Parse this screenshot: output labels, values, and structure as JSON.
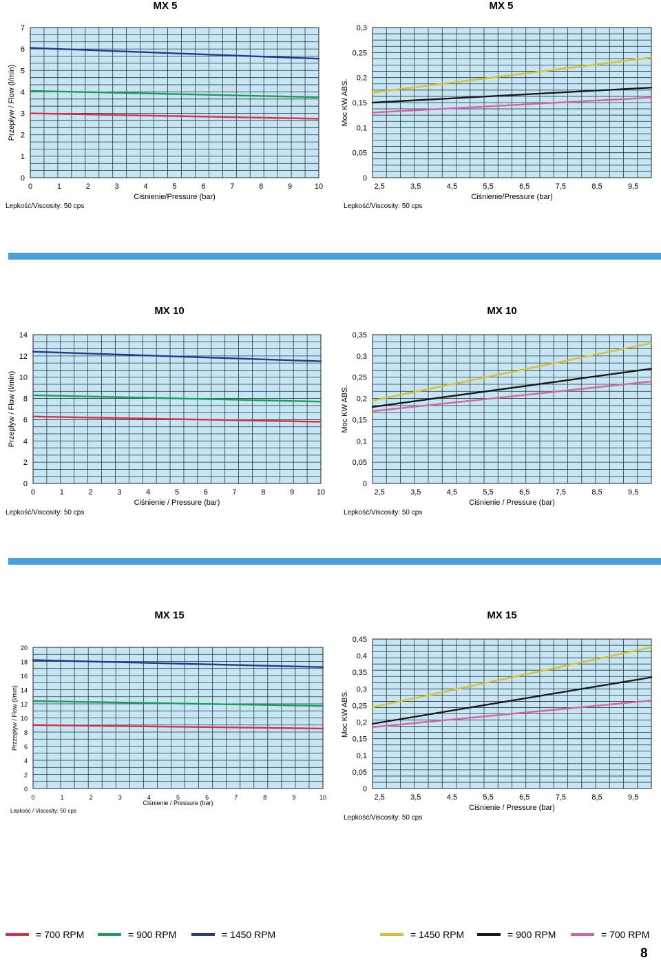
{
  "colors": {
    "plot_bg": "#c5e6f5",
    "grid": "#333333",
    "accent_bar": "#4a9fe0",
    "red": "#d9304a",
    "green": "#18a05a",
    "blue": "#2a3590",
    "yellow": "#d8c030",
    "black": "#1a1a1a",
    "pink": "#d862a2"
  },
  "sections": [
    {
      "heading_left": "MX 5",
      "heading_right": "MX 5"
    },
    {
      "heading_left": "MX 10",
      "heading_right": "MX 10"
    },
    {
      "heading_left": "MX 15",
      "heading_right": "MX 15"
    }
  ],
  "legend_left": [
    {
      "color": "#d9304a",
      "label": "= 700 RPM"
    },
    {
      "color": "#18a05a",
      "label": "= 900 RPM"
    },
    {
      "color": "#2a3590",
      "label": "= 1450 RPM"
    }
  ],
  "legend_right": [
    {
      "color": "#d8c030",
      "label": "= 1450 RPM"
    },
    {
      "color": "#1a1a1a",
      "label": "= 900 RPM"
    },
    {
      "color": "#d862a2",
      "label": "= 700 RPM"
    }
  ],
  "page_number": "8",
  "chart_data": [
    {
      "type": "line",
      "name": "mx5-flow",
      "title": "MX 5",
      "xlabel": "Ciśnienie/Pressure (bar)",
      "ylabel": "Przepływ  / Flow (l/min)",
      "note": "Lepkość/Viscosity: 50 cps",
      "x_ticks": [
        "0",
        "1",
        "2",
        "3",
        "4",
        "5",
        "6",
        "7",
        "8",
        "9",
        "10"
      ],
      "y_ticks": [
        "0",
        "1",
        "2",
        "3",
        "4",
        "5",
        "6",
        "7"
      ],
      "xlim": [
        0,
        10
      ],
      "ylim": [
        0,
        7
      ],
      "x_cols": 21,
      "y_rows": 21,
      "series": [
        {
          "color": "#2a3590",
          "x": [
            0,
            10
          ],
          "y": [
            6.05,
            5.55
          ]
        },
        {
          "color": "#18a05a",
          "x": [
            0,
            10
          ],
          "y": [
            4.05,
            3.75
          ]
        },
        {
          "color": "#d9304a",
          "x": [
            0,
            10
          ],
          "y": [
            3.0,
            2.75
          ]
        }
      ]
    },
    {
      "type": "line",
      "name": "mx5-power",
      "title": "MX 5",
      "xlabel": "Ciśnienie/Pressure (bar)",
      "ylabel": "Moc  KW ABS.",
      "note": "Lepkość/Viscosity: 50 cps",
      "x_ticks": [
        "2,5",
        "3,5",
        "4,5",
        "5,5",
        "6,5",
        "7,5",
        "8,5",
        "9,5"
      ],
      "y_ticks": [
        "0",
        "0,05",
        "0,1",
        "0,15",
        "0,2",
        "0,25",
        "0,3"
      ],
      "xlim": [
        2.5,
        10
      ],
      "ylim": [
        0,
        0.3
      ],
      "x_cols": 20,
      "y_rows": 24,
      "series": [
        {
          "color": "#d8c030",
          "x": [
            2.5,
            10
          ],
          "y": [
            0.17,
            0.24
          ]
        },
        {
          "color": "#1a1a1a",
          "x": [
            2.5,
            10
          ],
          "y": [
            0.15,
            0.18
          ]
        },
        {
          "color": "#d862a2",
          "x": [
            2.5,
            10
          ],
          "y": [
            0.13,
            0.16
          ]
        }
      ]
    },
    {
      "type": "line",
      "name": "mx10-flow",
      "title": "MX 10",
      "xlabel": "Ciśnienie  /  Pressure (bar)",
      "ylabel": "Przepływ  / Flow (l/min)",
      "note": "Lepkość/Viscosity: 50 cps",
      "x_ticks": [
        "0",
        "1",
        "2",
        "3",
        "4",
        "5",
        "6",
        "7",
        "8",
        "9",
        "10"
      ],
      "y_ticks": [
        "0",
        "2",
        "4",
        "6",
        "8",
        "10",
        "12",
        "14"
      ],
      "xlim": [
        0,
        10
      ],
      "ylim": [
        0,
        14
      ],
      "x_cols": 21,
      "y_rows": 21,
      "series": [
        {
          "color": "#2a3590",
          "x": [
            0,
            10
          ],
          "y": [
            12.4,
            11.5
          ]
        },
        {
          "color": "#18a05a",
          "x": [
            0,
            10
          ],
          "y": [
            8.3,
            7.7
          ]
        },
        {
          "color": "#d9304a",
          "x": [
            0,
            10
          ],
          "y": [
            6.3,
            5.8
          ]
        }
      ]
    },
    {
      "type": "line",
      "name": "mx10-power",
      "title": "MX 10",
      "xlabel": "Ciśnienie / Pressure (bar)",
      "ylabel": "Moc  KW ABS.",
      "note": "Lepkość/Viscosity: 50 cps",
      "x_ticks": [
        "2,5",
        "3,5",
        "4,5",
        "5,5",
        "6,5",
        "7,5",
        "8,5",
        "9,5"
      ],
      "y_ticks": [
        "0",
        "0,05",
        "0,1",
        "0,15",
        "0,2",
        "0,25",
        "0,3",
        "0,35"
      ],
      "xlim": [
        2.5,
        10
      ],
      "ylim": [
        0,
        0.35
      ],
      "x_cols": 20,
      "y_rows": 21,
      "series": [
        {
          "color": "#d8c030",
          "x": [
            2.5,
            10
          ],
          "y": [
            0.195,
            0.33
          ]
        },
        {
          "color": "#1a1a1a",
          "x": [
            2.5,
            10
          ],
          "y": [
            0.18,
            0.27
          ]
        },
        {
          "color": "#d862a2",
          "x": [
            2.5,
            10
          ],
          "y": [
            0.17,
            0.24
          ]
        }
      ]
    },
    {
      "type": "line",
      "name": "mx15-flow",
      "title": "MX 15",
      "xlabel": "Ciśnienie / Pressure (bar)",
      "ylabel": "Przzepływ  / Flow (l/min)",
      "note": "Lepkość / Viscosity: 50 cps",
      "x_ticks": [
        "0",
        "1",
        "2",
        "3",
        "4",
        "5",
        "6",
        "7",
        "8",
        "9",
        "10"
      ],
      "y_ticks": [
        "0",
        "2",
        "4",
        "6",
        "8",
        "10",
        "12",
        "14",
        "16",
        "18",
        "20"
      ],
      "xlim": [
        0,
        10
      ],
      "ylim": [
        0,
        20
      ],
      "x_cols": 21,
      "y_rows": 20,
      "series": [
        {
          "color": "#2a3590",
          "x": [
            0,
            10
          ],
          "y": [
            18.2,
            17.2
          ]
        },
        {
          "color": "#18a05a",
          "x": [
            0,
            10
          ],
          "y": [
            12.4,
            11.7
          ]
        },
        {
          "color": "#d9304a",
          "x": [
            0,
            10
          ],
          "y": [
            9.0,
            8.5
          ]
        }
      ]
    },
    {
      "type": "line",
      "name": "mx15-power",
      "title": "MX 15",
      "xlabel": "Ciśnienie / Pressure (bar)",
      "ylabel": "Moc  KW ABS.",
      "note": "Lepkość/Viscosity: 50 cps",
      "x_ticks": [
        "2,5",
        "3,5",
        "4,5",
        "5,5",
        "6,5",
        "7,5",
        "8,5",
        "9,5"
      ],
      "y_ticks": [
        "0",
        "0,05",
        "0,1",
        "0,15",
        "0,2",
        "0,25",
        "0,3",
        "0,35",
        "0,4",
        "0,45"
      ],
      "xlim": [
        2.5,
        10
      ],
      "ylim": [
        0,
        0.45
      ],
      "x_cols": 20,
      "y_rows": 24,
      "series": [
        {
          "color": "#d8c030",
          "x": [
            2.5,
            10
          ],
          "y": [
            0.245,
            0.425
          ]
        },
        {
          "color": "#1a1a1a",
          "x": [
            2.5,
            10
          ],
          "y": [
            0.195,
            0.335
          ]
        },
        {
          "color": "#d862a2",
          "x": [
            2.5,
            10
          ],
          "y": [
            0.185,
            0.265
          ]
        }
      ]
    }
  ]
}
